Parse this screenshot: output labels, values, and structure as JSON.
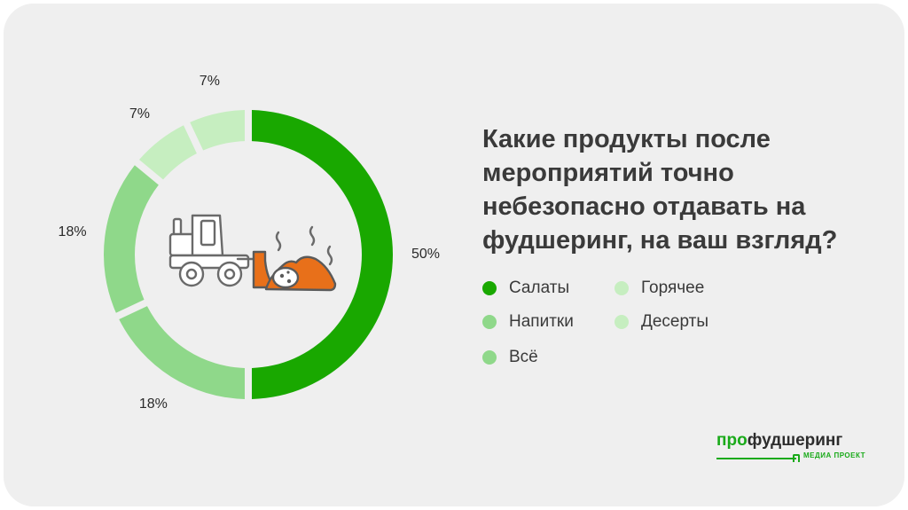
{
  "title_lines": [
    "Какие продукты после",
    "мероприятий точно",
    "небезопасно отдавать на",
    "фудшеринг, на ваш взгляд?"
  ],
  "chart_data": {
    "type": "pie",
    "donut": true,
    "title": "Какие продукты после мероприятий точно небезопасно отдавать на фудшеринг, на ваш взгляд?",
    "categories": [
      "Салаты",
      "Всё",
      "Напитки",
      "Горячее",
      "Десерты"
    ],
    "values": [
      50,
      18,
      18,
      7,
      7
    ],
    "data_labels": [
      "50%",
      "18%",
      "18%",
      "7%",
      "7%"
    ],
    "colors": [
      "#19a800",
      "#8fd88a",
      "#8fd88a",
      "#c6eec0",
      "#c6eec0"
    ],
    "legend_position": "right"
  },
  "legend": [
    {
      "label": "Салаты",
      "color": "#19a800"
    },
    {
      "label": "Напитки",
      "color": "#8fd88a"
    },
    {
      "label": "Всё",
      "color": "#8fd88a"
    },
    {
      "label": "Горячее",
      "color": "#c6eec0"
    },
    {
      "label": "Десерты",
      "color": "#c6eec0"
    }
  ],
  "center_icon": "bulldozer-pushing-waste-icon",
  "brand": {
    "name_part1": "про",
    "name_part2": "фудшеринг",
    "subtitle": "МЕДИА ПРОЕКТ",
    "color": "#1aaa1a"
  }
}
